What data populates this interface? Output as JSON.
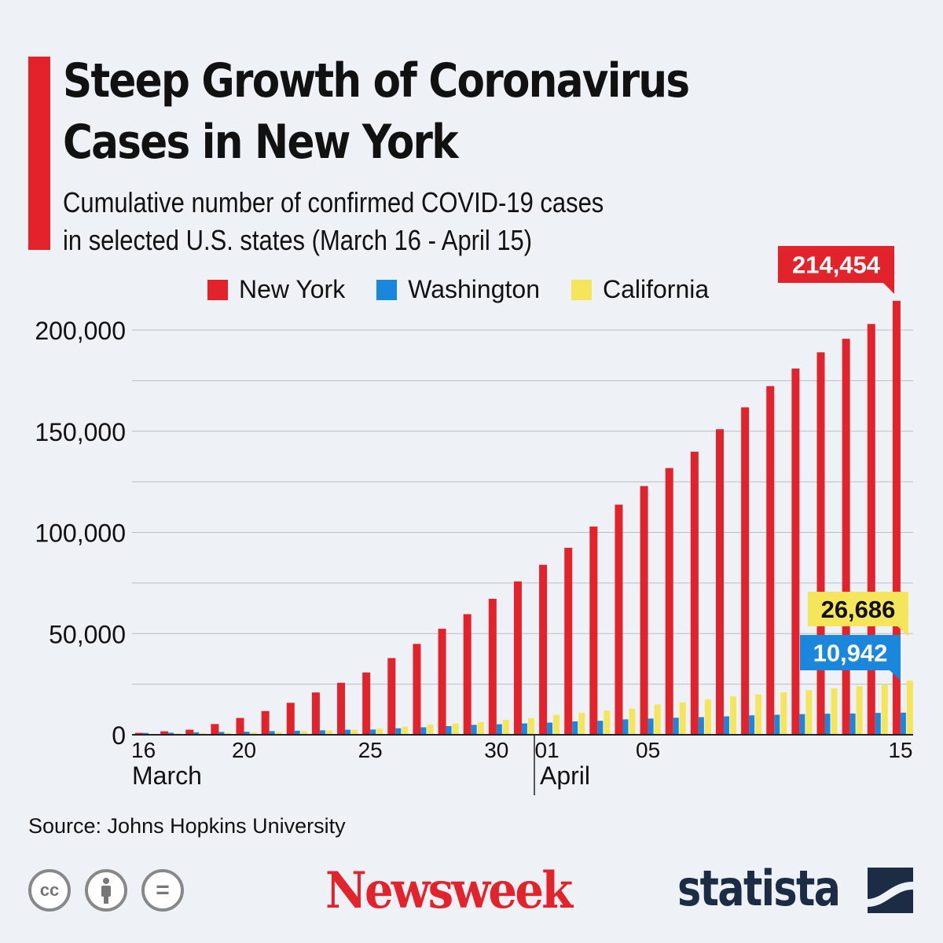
{
  "header": {
    "title": "Steep Growth of Coronavirus Cases in New York",
    "subtitle_line1": "Cumulative number of confirmed COVID-19 cases",
    "subtitle_line2": "in selected U.S. states (March 16 - April 15)"
  },
  "chart_data": {
    "type": "bar",
    "title": "Steep Growth of Coronavirus Cases in New York",
    "categories": [
      "Mar 16",
      "Mar 17",
      "Mar 18",
      "Mar 19",
      "Mar 20",
      "Mar 21",
      "Mar 22",
      "Mar 23",
      "Mar 24",
      "Mar 25",
      "Mar 26",
      "Mar 27",
      "Mar 28",
      "Mar 29",
      "Mar 30",
      "Mar 31",
      "Apr 01",
      "Apr 02",
      "Apr 03",
      "Apr 04",
      "Apr 05",
      "Apr 06",
      "Apr 07",
      "Apr 08",
      "Apr 09",
      "Apr 10",
      "Apr 11",
      "Apr 12",
      "Apr 13",
      "Apr 14",
      "Apr 15"
    ],
    "series": [
      {
        "name": "New York",
        "color": "#e3232c",
        "values": [
          950,
          1700,
          2500,
          5300,
          8300,
          11700,
          15800,
          20900,
          25700,
          30800,
          37900,
          44900,
          52400,
          59600,
          67200,
          75800,
          84000,
          92400,
          102900,
          113700,
          122900,
          131800,
          139900,
          151000,
          161800,
          172300,
          181000,
          189000,
          195700,
          203000,
          214454
        ]
      },
      {
        "name": "Washington",
        "color": "#1a87dd",
        "values": [
          900,
          1000,
          1200,
          1400,
          1500,
          1800,
          2000,
          2200,
          2500,
          2600,
          3200,
          3700,
          4300,
          4900,
          5200,
          5600,
          6000,
          6600,
          6900,
          7600,
          8000,
          8400,
          8700,
          9100,
          9600,
          9900,
          10200,
          10400,
          10500,
          10800,
          10942
        ]
      },
      {
        "name": "California",
        "color": "#f5e55a",
        "values": [
          400,
          600,
          700,
          900,
          1200,
          1400,
          1800,
          2100,
          2500,
          3000,
          4000,
          5000,
          5600,
          6300,
          7400,
          8200,
          9800,
          10800,
          12000,
          13000,
          15000,
          16000,
          17500,
          19000,
          20000,
          21000,
          22000,
          23000,
          24000,
          25000,
          26686
        ]
      }
    ],
    "yticks": [
      "0",
      "50,000",
      "100,000",
      "150,000",
      "200,000"
    ],
    "ytick_values": [
      0,
      50000,
      100000,
      150000,
      200000
    ],
    "ylim": [
      0,
      215000
    ],
    "xticks": [
      {
        "label": "16",
        "index": 0
      },
      {
        "label": "20",
        "index": 4
      },
      {
        "label": "25",
        "index": 9
      },
      {
        "label": "30",
        "index": 14
      },
      {
        "label": "01",
        "index": 16
      },
      {
        "label": "05",
        "index": 20
      },
      {
        "label": "15",
        "index": 30
      }
    ],
    "months": [
      {
        "label": "March",
        "index": 0
      },
      {
        "label": "April",
        "index": 16
      }
    ],
    "annotations": [
      {
        "text": "214,454",
        "series": "New York"
      },
      {
        "text": "26,686",
        "series": "California"
      },
      {
        "text": "10,942",
        "series": "Washington"
      }
    ],
    "grid": true,
    "legend": "top"
  },
  "footer": {
    "source": "Source: Johns Hopkins University",
    "newsweek": "Newsweek",
    "statista": "statista",
    "cc": "cc",
    "eq": "="
  }
}
